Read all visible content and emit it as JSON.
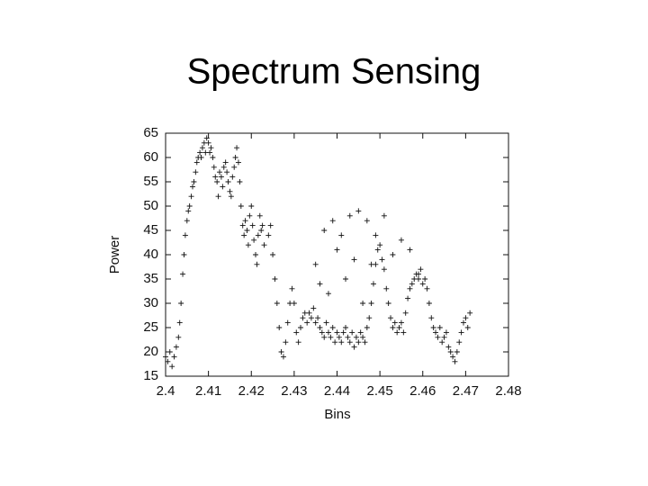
{
  "chart_data": {
    "type": "scatter",
    "title": "Spectrum Sensing",
    "xlabel": "Bins",
    "ylabel": "Power",
    "marker": "+",
    "color": "#111111",
    "x": [
      2.4,
      2.4005,
      2.401,
      2.4015,
      2.402,
      2.4025,
      2.403,
      2.4033,
      2.4036,
      2.404,
      2.4043,
      2.4046,
      2.405,
      2.4053,
      2.4056,
      2.406,
      2.4063,
      2.4066,
      2.407,
      2.4073,
      2.4076,
      2.408,
      2.4083,
      2.4086,
      2.409,
      2.4093,
      2.4096,
      2.41,
      2.4103,
      2.4106,
      2.411,
      2.4113,
      2.4116,
      2.412,
      2.4123,
      2.4126,
      2.413,
      2.4133,
      2.4136,
      2.414,
      2.4143,
      2.4146,
      2.415,
      2.4153,
      2.4156,
      2.416,
      2.4163,
      2.4166,
      2.417,
      2.4173,
      2.4176,
      2.418,
      2.4183,
      2.4186,
      2.419,
      2.4193,
      2.4196,
      2.42,
      2.4203,
      2.4206,
      2.421,
      2.4213,
      2.4216,
      2.422,
      2.4223,
      2.4226,
      2.423,
      2.424,
      2.4245,
      2.425,
      2.4255,
      2.426,
      2.4265,
      2.427,
      2.4275,
      2.428,
      2.4285,
      2.429,
      2.4295,
      2.43,
      2.4305,
      2.431,
      2.4315,
      2.432,
      2.4325,
      2.433,
      2.4335,
      2.434,
      2.4345,
      2.435,
      2.4355,
      2.436,
      2.4365,
      2.437,
      2.4375,
      2.438,
      2.4385,
      2.439,
      2.4395,
      2.44,
      2.4405,
      2.441,
      2.4415,
      2.442,
      2.4425,
      2.443,
      2.4435,
      2.444,
      2.4445,
      2.445,
      2.4455,
      2.446,
      2.4465,
      2.447,
      2.4475,
      2.448,
      2.4485,
      2.449,
      2.4495,
      2.45,
      2.4505,
      2.451,
      2.4515,
      2.452,
      2.4525,
      2.453,
      2.4535,
      2.454,
      2.4545,
      2.455,
      2.4555,
      2.456,
      2.4565,
      2.457,
      2.4575,
      2.458,
      2.4585,
      2.459,
      2.4595,
      2.46,
      2.4605,
      2.461,
      2.4615,
      2.462,
      2.4625,
      2.463,
      2.4635,
      2.464,
      2.4645,
      2.465,
      2.4655,
      2.466,
      2.4665,
      2.467,
      2.4675,
      2.468,
      2.4685,
      2.469,
      2.4695,
      2.47,
      2.4705,
      2.471,
      2.435,
      2.437,
      2.439,
      2.441,
      2.443,
      2.445,
      2.447,
      2.449,
      2.451,
      2.453,
      2.455,
      2.457,
      2.459,
      2.438,
      2.442,
      2.446,
      2.44,
      2.448,
      2.436,
      2.444
    ],
    "values": [
      19,
      18,
      20,
      17,
      19,
      21,
      23,
      26,
      30,
      36,
      40,
      44,
      47,
      49,
      50,
      52,
      54,
      55,
      57,
      59,
      60,
      61,
      60,
      62,
      63,
      61,
      64,
      63,
      61,
      62,
      60,
      58,
      56,
      55,
      52,
      57,
      56,
      54,
      58,
      59,
      57,
      55,
      53,
      52,
      56,
      58,
      60,
      62,
      59,
      55,
      50,
      46,
      44,
      47,
      45,
      42,
      48,
      50,
      46,
      43,
      40,
      38,
      44,
      48,
      45,
      46,
      42,
      44,
      46,
      40,
      35,
      30,
      25,
      20,
      19,
      22,
      26,
      30,
      33,
      30,
      24,
      22,
      25,
      27,
      28,
      26,
      28,
      27,
      29,
      26,
      27,
      25,
      24,
      23,
      26,
      24,
      23,
      25,
      22,
      24,
      23,
      22,
      24,
      25,
      23,
      22,
      24,
      21,
      23,
      22,
      24,
      23,
      22,
      25,
      27,
      30,
      34,
      38,
      41,
      42,
      39,
      37,
      33,
      30,
      27,
      25,
      26,
      24,
      25,
      26,
      24,
      28,
      31,
      33,
      34,
      35,
      36,
      35,
      37,
      34,
      35,
      33,
      30,
      27,
      25,
      24,
      23,
      25,
      22,
      23,
      24,
      21,
      20,
      19,
      18,
      20,
      22,
      24,
      26,
      27,
      25,
      28,
      38,
      45,
      47,
      44,
      48,
      49,
      47,
      44,
      48,
      40,
      43,
      41,
      36,
      32,
      35,
      30,
      41,
      38,
      34,
      39
    ],
    "xlim": [
      2.4,
      2.48
    ],
    "ylim": [
      15,
      65
    ],
    "xticks": [
      2.4,
      2.41,
      2.42,
      2.43,
      2.44,
      2.45,
      2.46,
      2.47,
      2.48
    ],
    "yticks": [
      15,
      20,
      25,
      30,
      35,
      40,
      45,
      50,
      55,
      60,
      65
    ]
  }
}
